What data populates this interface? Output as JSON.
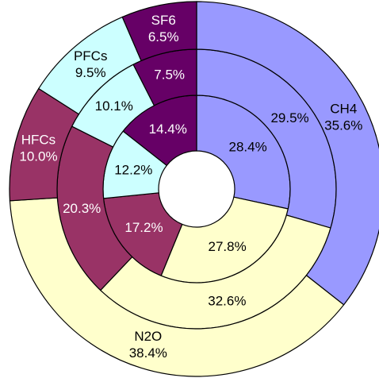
{
  "chart_data": {
    "type": "multi-donut",
    "categories": [
      "CH4",
      "N2O",
      "HFCs",
      "PFCs",
      "SF6"
    ],
    "colors": [
      "#9999ff",
      "#ffffcc",
      "#993366",
      "#ccffff",
      "#660066"
    ],
    "label_colors": [
      "#000000",
      "#000000",
      "#ffffff",
      "#000000",
      "#ffffff"
    ],
    "series": [
      {
        "values": [
          28.4,
          27.8,
          17.2,
          12.2,
          14.4
        ],
        "value_labels": [
          "28.4%",
          "27.8%",
          "17.2%",
          "12.2%",
          "14.4%"
        ]
      },
      {
        "values": [
          29.5,
          32.6,
          20.3,
          10.1,
          7.5
        ],
        "value_labels": [
          "29.5%",
          "32.6%",
          "20.3%",
          "10.1%",
          "7.5%"
        ]
      },
      {
        "values": [
          35.6,
          38.4,
          10.0,
          9.5,
          6.5
        ],
        "value_labels": [
          "35.6%",
          "38.4%",
          "10.0%",
          "9.5%",
          "6.5%"
        ]
      }
    ]
  }
}
